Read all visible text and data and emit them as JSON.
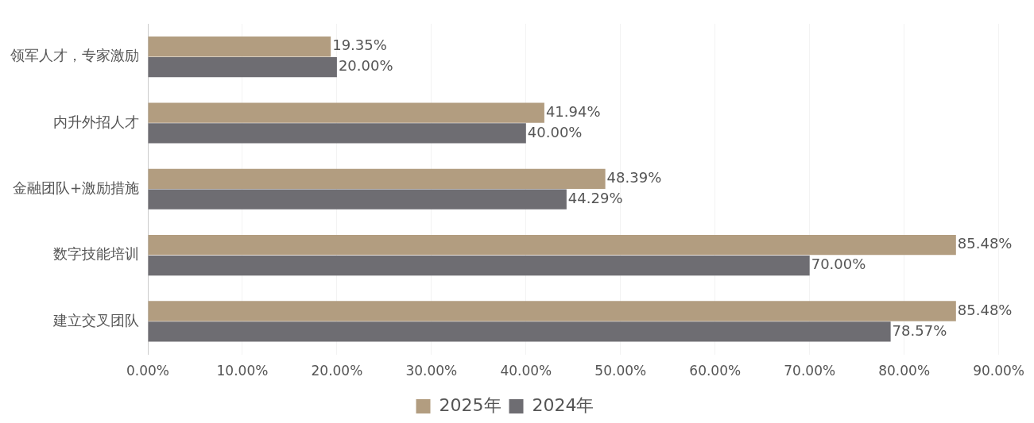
{
  "chart_data": {
    "type": "bar",
    "orientation": "horizontal",
    "categories": [
      "领军人才，专家激励",
      "内升外招人才",
      "金融团队+激励措施",
      "数字技能培训",
      "建立交叉团队"
    ],
    "series": [
      {
        "name": "2025年",
        "color": "#b29d80",
        "values": [
          19.35,
          41.94,
          48.39,
          85.48,
          85.48
        ],
        "value_labels": [
          "19.35%",
          "41.94%",
          "48.39%",
          "85.48%",
          "85.48%"
        ]
      },
      {
        "name": "2024年",
        "color": "#6e6d72",
        "values": [
          20,
          40,
          44.29,
          70,
          78.57
        ],
        "value_labels": [
          "20.00%",
          "40.00%",
          "44.29%",
          "70.00%",
          "78.57%"
        ]
      }
    ],
    "xlim": [
      0,
      90
    ],
    "xticks": [
      {
        "value": 0,
        "label": "0.00%"
      },
      {
        "value": 10,
        "label": "10.00%"
      },
      {
        "value": 20,
        "label": "20.00%"
      },
      {
        "value": 30,
        "label": "30.00%"
      },
      {
        "value": 40,
        "label": "40.00%"
      },
      {
        "value": 50,
        "label": "50.00%"
      },
      {
        "value": 60,
        "label": "60.00%"
      },
      {
        "value": 70,
        "label": "70.00%"
      },
      {
        "value": 80,
        "label": "80.00%"
      },
      {
        "value": 90,
        "label": "90.00%"
      }
    ],
    "grid": "x",
    "legend": "bottom"
  }
}
